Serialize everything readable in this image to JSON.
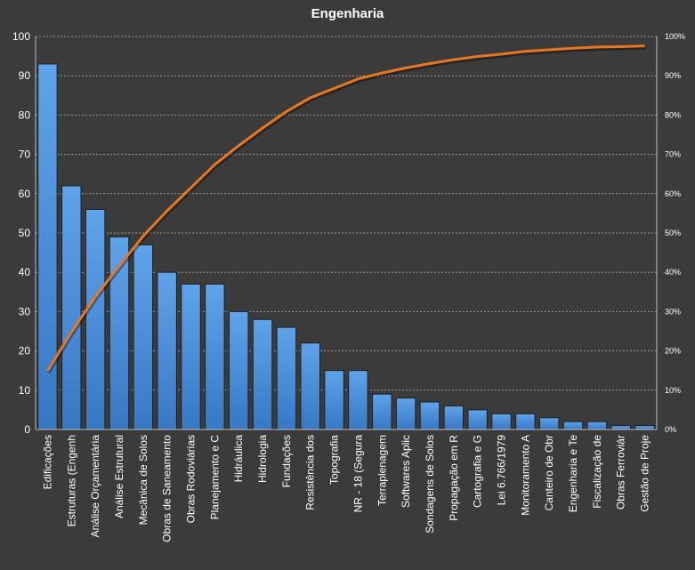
{
  "chart_data": {
    "type": "bar",
    "title": "Engenharia",
    "categories": [
      "Edificações",
      "Estruturas (Engenh",
      "Análise Orçamentária",
      "Análise Estrutural",
      "Mecânica de Solos",
      "Obras de Saneamento",
      "Obras Rodoviárias",
      "Planejamento e C",
      "Hidráulica",
      "Hidrologia",
      "Fundações",
      "Resistência dos",
      "Topografia",
      "NR - 18 (Segura",
      "Terraplenagem",
      "Softwares Aplic",
      "Sondagens de Solos",
      "Propagação em R",
      "Cartografia e G",
      "Lei 6.766/1979",
      "Monitoramento A",
      "Canteiro de Obr",
      "Engenharia e Te",
      "Fiscalização de",
      "Obras Ferroviár",
      "Gestão de Proje"
    ],
    "values": [
      93,
      62,
      56,
      49,
      47,
      40,
      37,
      37,
      30,
      28,
      26,
      22,
      15,
      15,
      9,
      8,
      7,
      6,
      5,
      4,
      4,
      3,
      2,
      2,
      1,
      1
    ],
    "cumulative_percent": [
      14.9,
      24.8,
      33.8,
      41.6,
      49.2,
      55.6,
      61.5,
      67.4,
      72.2,
      76.7,
      80.9,
      84.4,
      86.8,
      89.2,
      90.7,
      92.0,
      93.1,
      94.1,
      94.9,
      95.5,
      96.2,
      96.6,
      97.0,
      97.3,
      97.4,
      97.6
    ],
    "ylim": [
      0,
      100
    ],
    "yticks": [
      0,
      10,
      20,
      30,
      40,
      50,
      60,
      70,
      80,
      90,
      100
    ],
    "y2lim": [
      0,
      100
    ],
    "y2ticks": [
      "0%",
      "10%",
      "20%",
      "30%",
      "40%",
      "50%",
      "60%",
      "70%",
      "80%",
      "90%",
      "100%"
    ],
    "grid": true,
    "legend": "none",
    "bar_color": "#4a8fd8",
    "line_color": "#e87722"
  }
}
